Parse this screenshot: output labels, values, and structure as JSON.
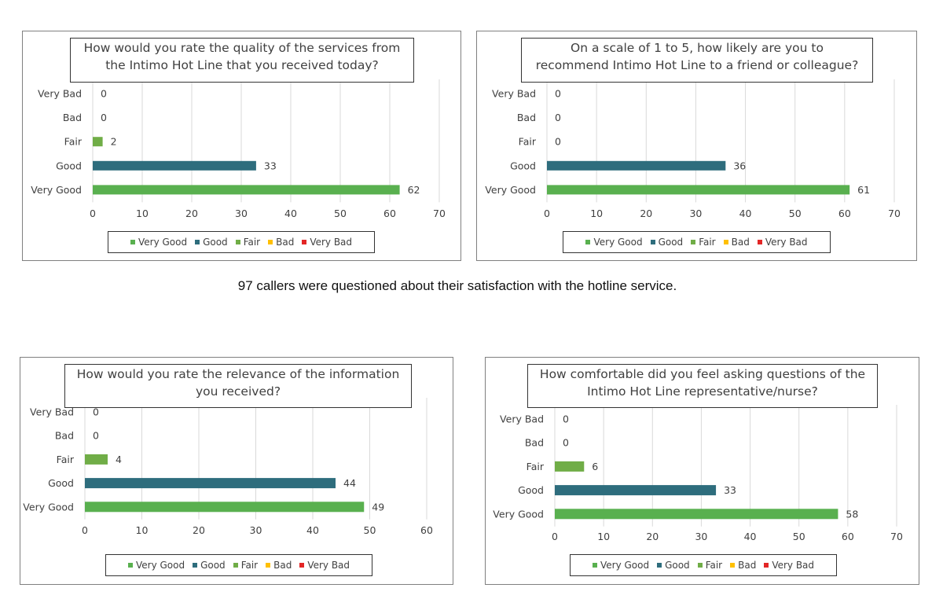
{
  "caption": "97 callers were questioned about their satisfaction with the hotline service.",
  "colors": {
    "very_good": "#59b04f",
    "good": "#2e6d7d",
    "fair": "#70ad47",
    "bad": "#ffc000",
    "very_bad": "#e32626",
    "grid": "#d9d9d9",
    "text": "#404040"
  },
  "chart_data": [
    {
      "type": "bar",
      "orientation": "horizontal",
      "title_lines": [
        "How would you rate the quality of the services from",
        "the Intimo Hot Line that you received today?"
      ],
      "categories": [
        "Very Bad",
        "Bad",
        "Fair",
        "Good",
        "Very Good"
      ],
      "values": [
        0,
        0,
        2,
        33,
        62
      ],
      "xlim": [
        0,
        70
      ],
      "xticks": [
        0,
        10,
        20,
        30,
        40,
        50,
        60,
        70
      ],
      "grid": true,
      "legend_position": "bottom",
      "legend": [
        "Very Good",
        "Good",
        "Fair",
        "Bad",
        "Very Bad"
      ]
    },
    {
      "type": "bar",
      "orientation": "horizontal",
      "title_lines": [
        "On a scale of 1 to 5, how likely are you to",
        "recommend Intimo Hot Line to a friend or colleague?"
      ],
      "categories": [
        "Very Bad",
        "Bad",
        "Fair",
        "Good",
        "Very Good"
      ],
      "values": [
        0,
        0,
        0,
        36,
        61
      ],
      "xlim": [
        0,
        70
      ],
      "xticks": [
        0,
        10,
        20,
        30,
        40,
        50,
        60,
        70
      ],
      "grid": true,
      "legend_position": "bottom",
      "legend": [
        "Very Good",
        "Good",
        "Fair",
        "Bad",
        "Very Bad"
      ]
    },
    {
      "type": "bar",
      "orientation": "horizontal",
      "title_lines": [
        "How would you rate the relevance of the information",
        "you received?"
      ],
      "categories": [
        "Very Bad",
        "Bad",
        "Fair",
        "Good",
        "Very Good"
      ],
      "values": [
        0,
        0,
        4,
        44,
        49
      ],
      "xlim": [
        0,
        60
      ],
      "xticks": [
        0,
        10,
        20,
        30,
        40,
        50,
        60
      ],
      "grid": true,
      "legend_position": "bottom",
      "legend": [
        "Very Good",
        "Good",
        "Fair",
        "Bad",
        "Very Bad"
      ]
    },
    {
      "type": "bar",
      "orientation": "horizontal",
      "title_lines": [
        "How comfortable did you feel asking questions of the",
        "Intimo Hot Line representative/nurse?"
      ],
      "categories": [
        "Very Bad",
        "Bad",
        "Fair",
        "Good",
        "Very Good"
      ],
      "values": [
        0,
        0,
        6,
        33,
        58
      ],
      "xlim": [
        0,
        70
      ],
      "xticks": [
        0,
        10,
        20,
        30,
        40,
        50,
        60,
        70
      ],
      "grid": true,
      "legend_position": "bottom",
      "legend": [
        "Very Good",
        "Good",
        "Fair",
        "Bad",
        "Very Bad"
      ]
    }
  ]
}
